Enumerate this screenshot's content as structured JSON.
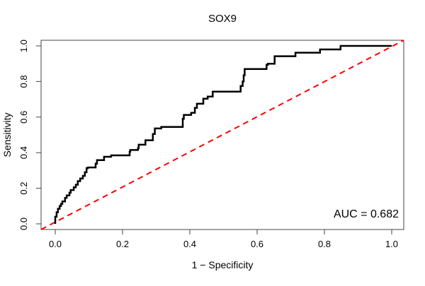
{
  "window": {
    "background": "#ffffff"
  },
  "chart_data": {
    "type": "line",
    "title": "SOX9",
    "xlabel": "1 − Specificity",
    "ylabel": "Sensitivity",
    "xlim": [
      0,
      1
    ],
    "ylim": [
      0,
      1
    ],
    "x_ticks": [
      "0.0",
      "0.2",
      "0.4",
      "0.6",
      "0.8",
      "1.0"
    ],
    "x_tick_values": [
      0.0,
      0.2,
      0.4,
      0.6,
      0.8,
      1.0
    ],
    "y_ticks": [
      "0.0",
      "0.2",
      "0.4",
      "0.6",
      "0.8",
      "1.0"
    ],
    "y_tick_values": [
      0.0,
      0.2,
      0.4,
      0.6,
      0.8,
      1.0
    ],
    "grid": false,
    "legend_position": "none",
    "annotation": "AUC = 0.682",
    "auc_value": 0.682,
    "series": [
      {
        "name": "roc-curve",
        "label": "ROC curve (SOX9)",
        "draw": "step",
        "color": "#000000",
        "linewidth": 2.5,
        "linestyle": "solid",
        "points": [
          [
            0.0,
            0.0
          ],
          [
            0.004,
            0.04
          ],
          [
            0.008,
            0.065
          ],
          [
            0.013,
            0.085
          ],
          [
            0.017,
            0.1
          ],
          [
            0.021,
            0.112
          ],
          [
            0.029,
            0.126
          ],
          [
            0.034,
            0.146
          ],
          [
            0.042,
            0.16
          ],
          [
            0.046,
            0.175
          ],
          [
            0.055,
            0.19
          ],
          [
            0.061,
            0.205
          ],
          [
            0.067,
            0.22
          ],
          [
            0.074,
            0.24
          ],
          [
            0.082,
            0.255
          ],
          [
            0.088,
            0.27
          ],
          [
            0.093,
            0.29
          ],
          [
            0.097,
            0.313
          ],
          [
            0.12,
            0.317
          ],
          [
            0.124,
            0.338
          ],
          [
            0.145,
            0.358
          ],
          [
            0.166,
            0.377
          ],
          [
            0.172,
            0.385
          ],
          [
            0.221,
            0.385
          ],
          [
            0.223,
            0.405
          ],
          [
            0.246,
            0.415
          ],
          [
            0.248,
            0.425
          ],
          [
            0.268,
            0.445
          ],
          [
            0.29,
            0.47
          ],
          [
            0.296,
            0.505
          ],
          [
            0.315,
            0.536
          ],
          [
            0.325,
            0.545
          ],
          [
            0.379,
            0.545
          ],
          [
            0.382,
            0.59
          ],
          [
            0.404,
            0.612
          ],
          [
            0.415,
            0.624
          ],
          [
            0.421,
            0.652
          ],
          [
            0.44,
            0.675
          ],
          [
            0.453,
            0.703
          ],
          [
            0.468,
            0.715
          ],
          [
            0.495,
            0.743
          ],
          [
            0.551,
            0.743
          ],
          [
            0.557,
            0.775
          ],
          [
            0.56,
            0.8
          ],
          [
            0.563,
            0.835
          ],
          [
            0.567,
            0.87
          ],
          [
            0.628,
            0.87
          ],
          [
            0.632,
            0.894
          ],
          [
            0.652,
            0.9
          ],
          [
            0.655,
            0.942
          ],
          [
            0.714,
            0.942
          ],
          [
            0.717,
            0.962
          ],
          [
            0.787,
            0.962
          ],
          [
            0.79,
            0.98
          ],
          [
            0.848,
            0.98
          ],
          [
            0.851,
            1.0
          ],
          [
            1.0,
            1.0
          ]
        ]
      },
      {
        "name": "chance-line",
        "label": "reference diagonal",
        "draw": "reference-diagonal",
        "color": "#FF0000",
        "linewidth": 2,
        "linestyle": "dashed",
        "points": [
          [
            0,
            0
          ],
          [
            1,
            1
          ]
        ]
      }
    ]
  }
}
